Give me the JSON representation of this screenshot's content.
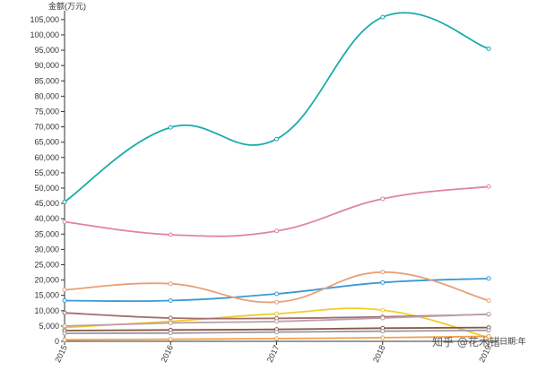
{
  "chart_data": {
    "type": "line",
    "ylabel": "金额(万元)",
    "xlabel": "日期:年",
    "x": [
      "2015",
      "2016",
      "2017",
      "2018",
      "2019"
    ],
    "ylim": [
      0,
      107000
    ],
    "yticks": [
      0,
      5000,
      10000,
      15000,
      20000,
      25000,
      30000,
      35000,
      40000,
      45000,
      50000,
      55000,
      60000,
      65000,
      70000,
      75000,
      80000,
      85000,
      90000,
      95000,
      100000,
      105000
    ],
    "ytick_labels": [
      "0",
      "5,000",
      "10,000",
      "15,000",
      "20,000",
      "25,000",
      "30,000",
      "35,000",
      "40,000",
      "45,000",
      "50,000",
      "55,000",
      "60,000",
      "65,000",
      "70,000",
      "75,000",
      "80,000",
      "85,000",
      "90,000",
      "95,000",
      "100,000",
      "105,000"
    ],
    "grid": false,
    "legend": "none",
    "series": [
      {
        "color": "#1aaca8",
        "values": [
          45500,
          69800,
          66000,
          105800,
          95500
        ]
      },
      {
        "color": "#e0849e",
        "values": [
          39000,
          34800,
          36000,
          46500,
          50500
        ]
      },
      {
        "color": "#3a9ad4",
        "values": [
          13300,
          13300,
          15500,
          19200,
          20500
        ]
      },
      {
        "color": "#e8a07a",
        "values": [
          16800,
          18800,
          12800,
          22600,
          13300
        ]
      },
      {
        "color": "#f2cc2a",
        "values": [
          4500,
          6500,
          9000,
          10200,
          1200
        ]
      },
      {
        "color": "#a07070",
        "values": [
          9300,
          7600,
          7500,
          8000,
          8800
        ]
      },
      {
        "color": "#c0a0a8",
        "values": [
          5000,
          6000,
          6500,
          7600,
          8900
        ]
      },
      {
        "color": "#8a5a40",
        "values": [
          3500,
          3700,
          3900,
          4300,
          4500
        ]
      },
      {
        "color": "#9a9aaa",
        "values": [
          2600,
          2700,
          3000,
          3300,
          3600
        ]
      },
      {
        "color": "#f0a050",
        "values": [
          500,
          700,
          900,
          1200,
          1600
        ]
      }
    ]
  },
  "watermark": "知乎 @花木错"
}
